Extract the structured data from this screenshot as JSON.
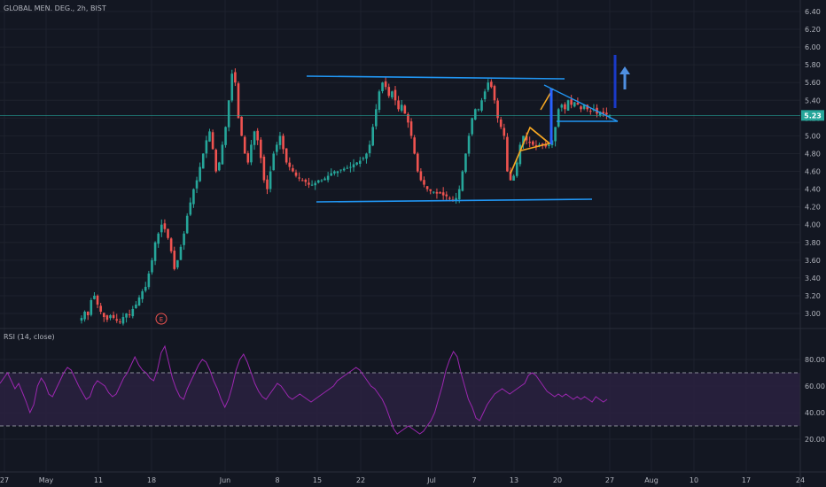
{
  "header": {
    "symbol": "GLOBAL MEN. DEG., 2h, BIST"
  },
  "rsi_panel": {
    "label": "RSI (14, close)"
  },
  "earnings_badge": "E",
  "last_price_label": "5.23",
  "colors": {
    "background": "#131722",
    "grid": "#1e222d",
    "up": "#26a69a",
    "down": "#ef5350",
    "trendline": "#2196f3",
    "pattern_orange": "#f5a623",
    "pattern_blue": "#2962ff",
    "rsi_line": "#9c27b0",
    "rsi_band": "#2a2140"
  },
  "chart_data": [
    {
      "type": "candlestick",
      "title": "",
      "x_tick_labels": [
        "27",
        "May",
        "11",
        "18",
        "Jun",
        "8",
        "15",
        "22",
        "Jul",
        "7",
        "13",
        "20",
        "27",
        "Aug",
        "10",
        "17",
        "24"
      ],
      "y_tick_labels": [
        "6.40",
        "6.20",
        "6.00",
        "5.80",
        "5.60",
        "5.40",
        "5.20",
        "5.00",
        "4.80",
        "4.60",
        "4.40",
        "4.20",
        "4.00",
        "3.80",
        "3.60",
        "3.40",
        "3.20",
        "3.00"
      ],
      "ylim": [
        2.9,
        6.45
      ],
      "grid": true,
      "last_price": 5.23,
      "series": [
        {
          "close": [
            2.95,
            3.02,
            2.98,
            3.15,
            3.2,
            3.1,
            3.02,
            2.96,
            2.93,
            2.98,
            2.95,
            2.92,
            2.9,
            2.96,
            3.0,
            2.98,
            3.05,
            3.1,
            3.18,
            3.25,
            3.3,
            3.45,
            3.6,
            3.8,
            3.9,
            4.0,
            3.95,
            3.85,
            3.7,
            3.5,
            3.6,
            3.75,
            3.9,
            4.1,
            4.25,
            4.4,
            4.5,
            4.65,
            4.8,
            4.95,
            5.05,
            4.85,
            4.6,
            4.7,
            4.9,
            5.1,
            5.4,
            5.7,
            5.6,
            5.2,
            5.0,
            4.8,
            4.7,
            4.9,
            5.05,
            4.95,
            4.75,
            4.5,
            4.4,
            4.6,
            4.8,
            4.9,
            5.0,
            4.85,
            4.7,
            4.65,
            4.6,
            4.55,
            4.52,
            4.5,
            4.48,
            4.45,
            4.45,
            4.47,
            4.5,
            4.5,
            4.52,
            4.55,
            4.58,
            4.6,
            4.6,
            4.62,
            4.63,
            4.64,
            4.65,
            4.68,
            4.7,
            4.72,
            4.75,
            4.8,
            4.9,
            5.1,
            5.3,
            5.5,
            5.6,
            5.55,
            5.45,
            5.5,
            5.4,
            5.3,
            5.35,
            5.25,
            5.15,
            5.0,
            4.8,
            4.6,
            4.5,
            4.45,
            4.4,
            4.38,
            4.37,
            4.35,
            4.35,
            4.33,
            4.32,
            4.3,
            4.28,
            4.3,
            4.4,
            4.6,
            4.8,
            5.0,
            5.2,
            5.3,
            5.3,
            5.4,
            5.5,
            5.6,
            5.55,
            5.4,
            5.2,
            5.1,
            5.0,
            4.6,
            4.5,
            4.55,
            4.7,
            4.9,
            5.0,
            4.95,
            4.92,
            4.9,
            4.88,
            4.9,
            4.9,
            4.88,
            4.9,
            4.95,
            5.1,
            5.3,
            5.35,
            5.3,
            5.4,
            5.35,
            5.38,
            5.35,
            5.3,
            5.35,
            5.3,
            5.28,
            5.3,
            5.25,
            5.27,
            5.25,
            5.24,
            5.23
          ]
        }
      ],
      "annotations": [
        {
          "type": "horizontal_channel_top",
          "price": 5.66
        },
        {
          "type": "horizontal_channel_bottom",
          "price": 4.25
        },
        {
          "type": "symmetrical_triangle",
          "color": "orange"
        },
        {
          "type": "descending_triangle",
          "color": "blue"
        },
        {
          "type": "breakout_arrow",
          "direction": "up"
        }
      ]
    },
    {
      "type": "line",
      "title": "RSI (14, close)",
      "y_tick_labels": [
        "80.00",
        "60.00",
        "40.00",
        "20.00"
      ],
      "ylim": [
        15,
        92
      ],
      "band": [
        30,
        70
      ],
      "series": [
        {
          "values": [
            62,
            66,
            70,
            64,
            58,
            62,
            55,
            48,
            40,
            46,
            60,
            66,
            62,
            54,
            52,
            58,
            64,
            70,
            74,
            72,
            66,
            60,
            55,
            50,
            52,
            60,
            64,
            62,
            60,
            55,
            52,
            54,
            60,
            66,
            70,
            76,
            82,
            76,
            72,
            70,
            66,
            64,
            72,
            85,
            90,
            78,
            66,
            58,
            52,
            50,
            58,
            64,
            70,
            76,
            80,
            78,
            72,
            64,
            58,
            50,
            44,
            50,
            60,
            72,
            80,
            84,
            78,
            70,
            62,
            56,
            52,
            50,
            54,
            58,
            62,
            60,
            56,
            52,
            50,
            52,
            54,
            52,
            50,
            48,
            50,
            52,
            54,
            56,
            58,
            60,
            64,
            66,
            68,
            70,
            72,
            74,
            72,
            68,
            64,
            60,
            58,
            54,
            50,
            44,
            36,
            28,
            24,
            26,
            28,
            30,
            28,
            26,
            24,
            26,
            30,
            34,
            40,
            50,
            60,
            72,
            80,
            86,
            82,
            70,
            60,
            50,
            44,
            36,
            34,
            40,
            46,
            50,
            54,
            56,
            58,
            56,
            54,
            56,
            58,
            60,
            62,
            68,
            70,
            68,
            64,
            60,
            56,
            54,
            52,
            54,
            52,
            54,
            52,
            50,
            52,
            50,
            52,
            50,
            48,
            52,
            50,
            48,
            50
          ]
        }
      ]
    }
  ]
}
